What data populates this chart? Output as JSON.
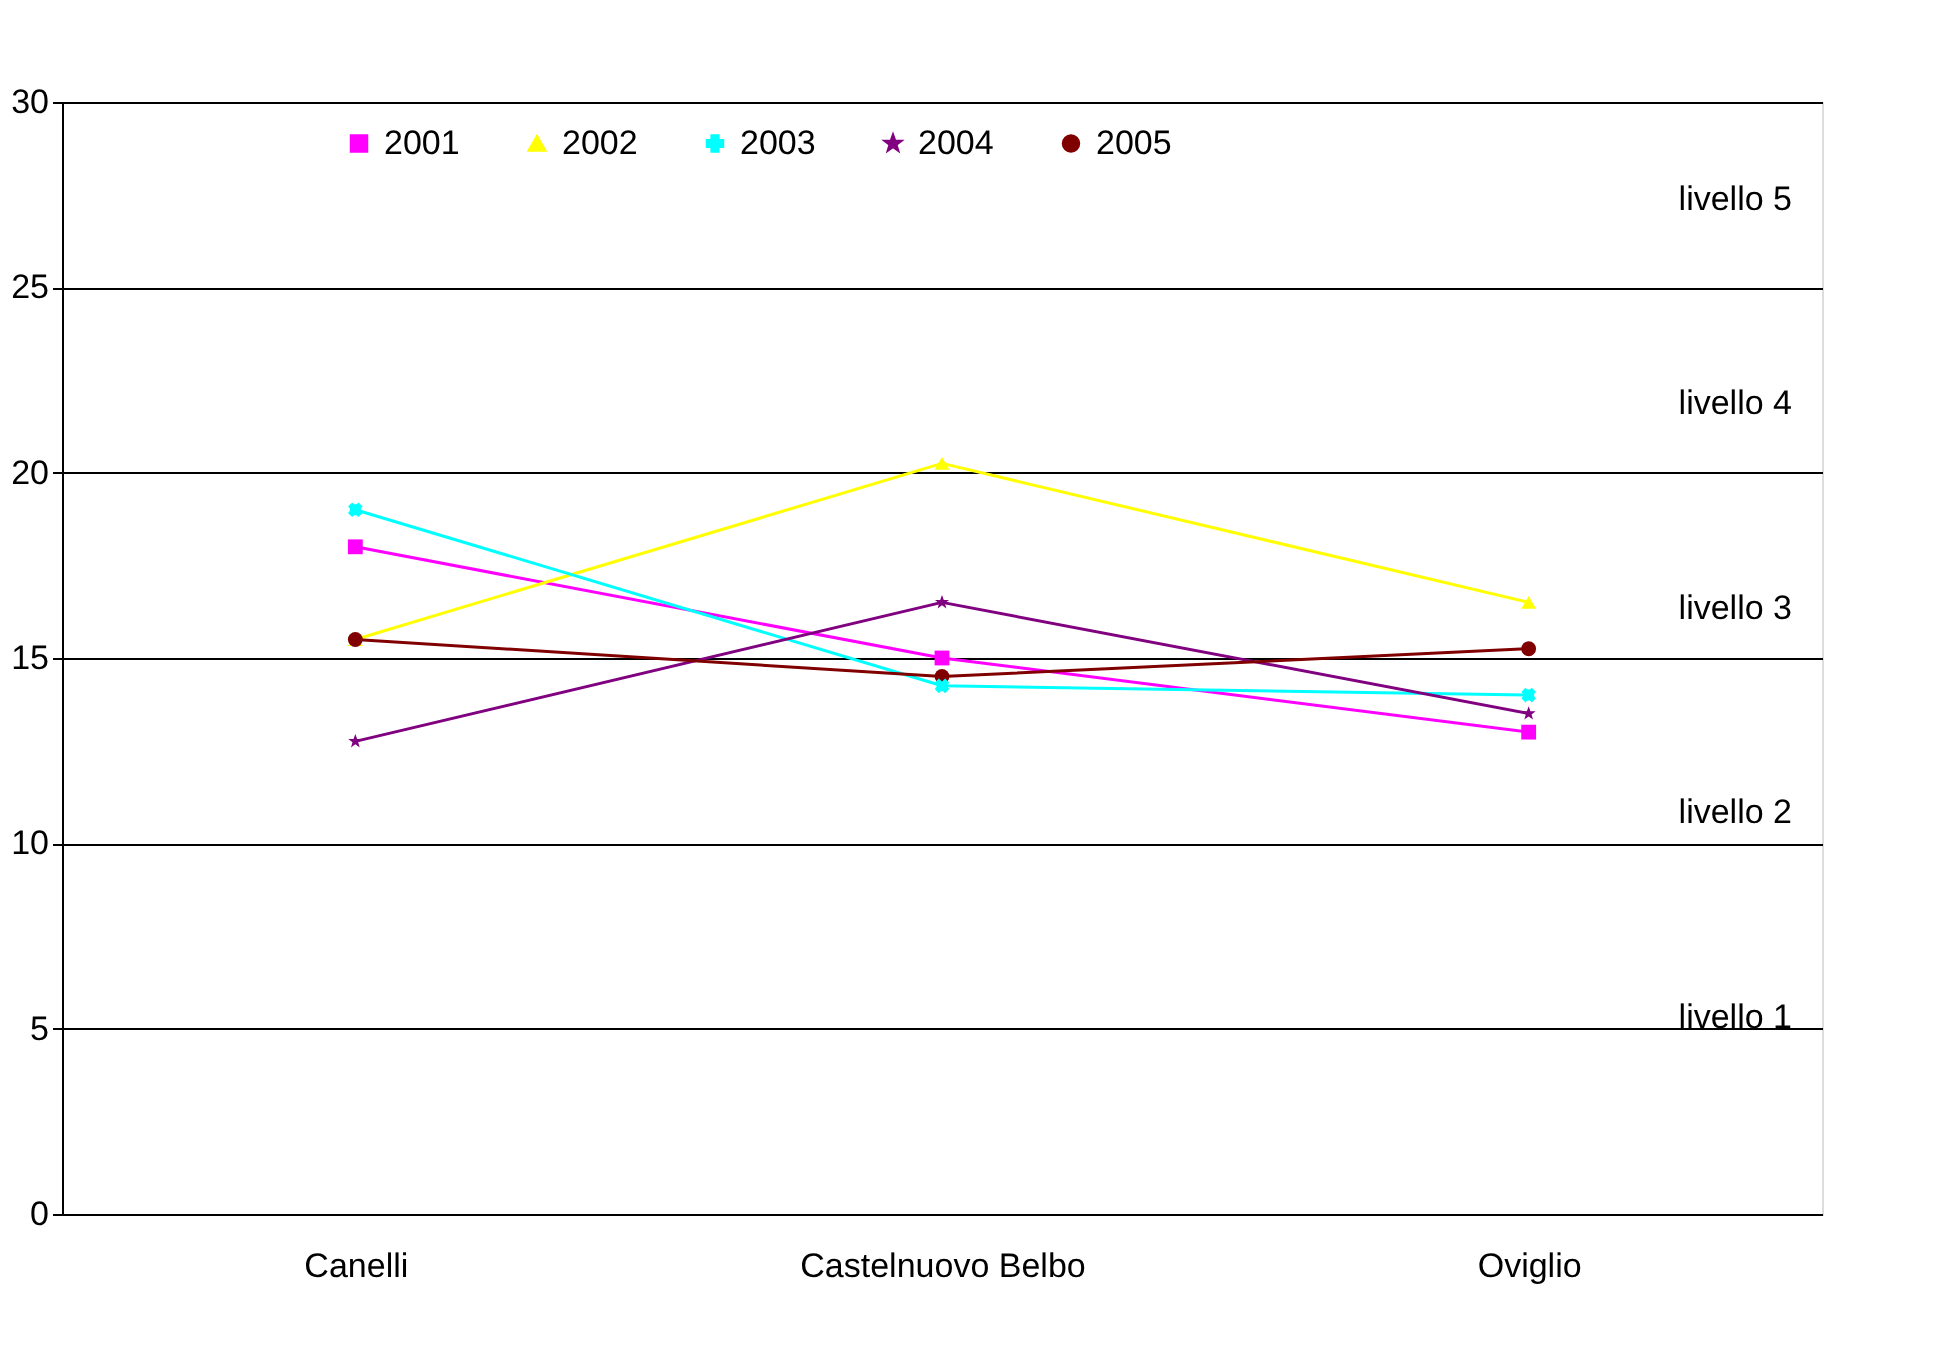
{
  "chart_data": {
    "type": "line",
    "categories": [
      "Canelli",
      "Castelnuovo Belbo",
      "Oviglio"
    ],
    "series": [
      {
        "name": "2001",
        "color": "#ff00ff",
        "marker": "square",
        "values": [
          18,
          15,
          13
        ]
      },
      {
        "name": "2002",
        "color": "#ffff00",
        "marker": "triangle",
        "values": [
          15.5,
          20.25,
          16.5
        ]
      },
      {
        "name": "2003",
        "color": "#00ffff",
        "marker": "cross",
        "values": [
          19,
          14.25,
          14
        ]
      },
      {
        "name": "2004",
        "color": "#800080",
        "marker": "star",
        "values": [
          12.75,
          16.5,
          13.5
        ]
      },
      {
        "name": "2005",
        "color": "#800000",
        "marker": "circle",
        "values": [
          15.5,
          14.5,
          15.25
        ]
      }
    ],
    "ylim": [
      0,
      30
    ],
    "yticks": [
      0,
      5,
      10,
      15,
      20,
      25,
      30
    ],
    "grid": "y",
    "legend": "top",
    "annotations": [
      "livello 5",
      "livello 4",
      "livello 3",
      "livello 2",
      "livello 1"
    ]
  }
}
